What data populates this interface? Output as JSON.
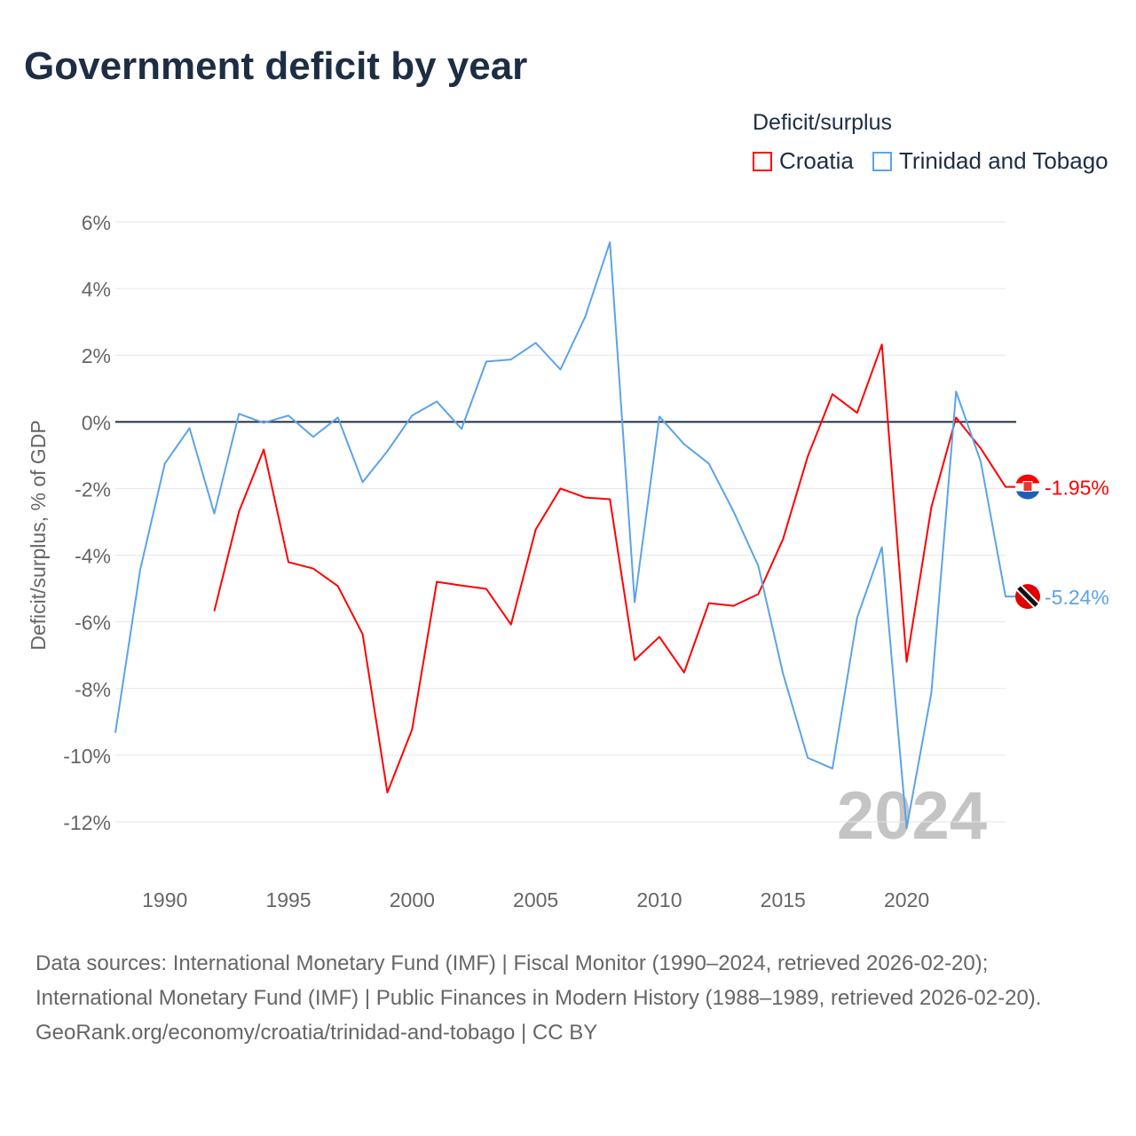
{
  "title": "Government deficit by year",
  "legend": {
    "title": "Deficit/surplus",
    "items": [
      {
        "name": "Croatia",
        "color": "#ff0000"
      },
      {
        "name": "Trinidad and Tobago",
        "color": "#5ba3e8"
      }
    ]
  },
  "sources": {
    "line1": "Data sources: International Monetary Fund (IMF) | Fiscal Monitor (1990–2024, retrieved 2026-02-20); International Monetary Fund (IMF) | Public Finances in Modern History (1988–1989, retrieved 2026-02-20).",
    "line2": "GeoRank.org/economy/croatia/trinidad-and-tobago | CC BY"
  },
  "chart_data": {
    "type": "line",
    "title": "Government deficit by year",
    "xlabel": "",
    "ylabel": "Deficit/surplus, % of GDP",
    "xlim": [
      1988,
      2024
    ],
    "ylim": [
      -12,
      6
    ],
    "xticks": [
      1990,
      1995,
      2000,
      2005,
      2010,
      2015,
      2020
    ],
    "yticks": [
      6,
      4,
      2,
      0,
      -2,
      -4,
      -6,
      -8,
      -10,
      -12
    ],
    "ytick_labels": [
      "6%",
      "4%",
      "2%",
      "0%",
      "-2%",
      "-4%",
      "-6%",
      "-8%",
      "-10%",
      "-12%"
    ],
    "watermark_year": "2024",
    "grid": true,
    "legend_position": "top-right",
    "series": [
      {
        "name": "Croatia",
        "color": "#ff0000",
        "end_label": "-1.95%",
        "x": [
          1992,
          1993,
          1994,
          1995,
          1996,
          1997,
          1998,
          1999,
          2000,
          2001,
          2002,
          2003,
          2004,
          2005,
          2006,
          2007,
          2008,
          2009,
          2010,
          2011,
          2012,
          2013,
          2014,
          2015,
          2016,
          2017,
          2018,
          2019,
          2020,
          2021,
          2022,
          2023,
          2024
        ],
        "values": [
          -5.68,
          -2.69,
          -0.83,
          -4.21,
          -4.4,
          -4.93,
          -6.37,
          -11.12,
          -9.23,
          -4.8,
          -4.91,
          -5.01,
          -6.08,
          -3.23,
          -2.0,
          -2.27,
          -2.32,
          -7.15,
          -6.45,
          -7.52,
          -5.44,
          -5.52,
          -5.17,
          -3.52,
          -1.04,
          0.83,
          0.27,
          2.32,
          -7.2,
          -2.56,
          0.13,
          -0.8,
          -1.95
        ]
      },
      {
        "name": "Trinidad and Tobago",
        "color": "#5ba3e8",
        "end_label": "-5.24%",
        "x": [
          1988,
          1989,
          1990,
          1991,
          1992,
          1993,
          1994,
          1995,
          1996,
          1997,
          1998,
          1999,
          2000,
          2001,
          2002,
          2003,
          2004,
          2005,
          2006,
          2007,
          2008,
          2009,
          2010,
          2011,
          2012,
          2013,
          2014,
          2015,
          2016,
          2017,
          2018,
          2019,
          2020,
          2021,
          2022,
          2023,
          2024
        ],
        "values": [
          -9.33,
          -4.45,
          -1.25,
          -0.19,
          -2.75,
          0.24,
          -0.03,
          0.19,
          -0.45,
          0.13,
          -1.81,
          -0.88,
          0.19,
          0.61,
          -0.21,
          1.81,
          1.87,
          2.37,
          1.57,
          3.15,
          5.39,
          -5.41,
          0.16,
          -0.67,
          -1.25,
          -2.69,
          -4.32,
          -7.55,
          -10.08,
          -10.4,
          -5.87,
          -3.76,
          -12.19,
          -8.13,
          0.91,
          -1.2,
          -5.24
        ]
      }
    ]
  }
}
